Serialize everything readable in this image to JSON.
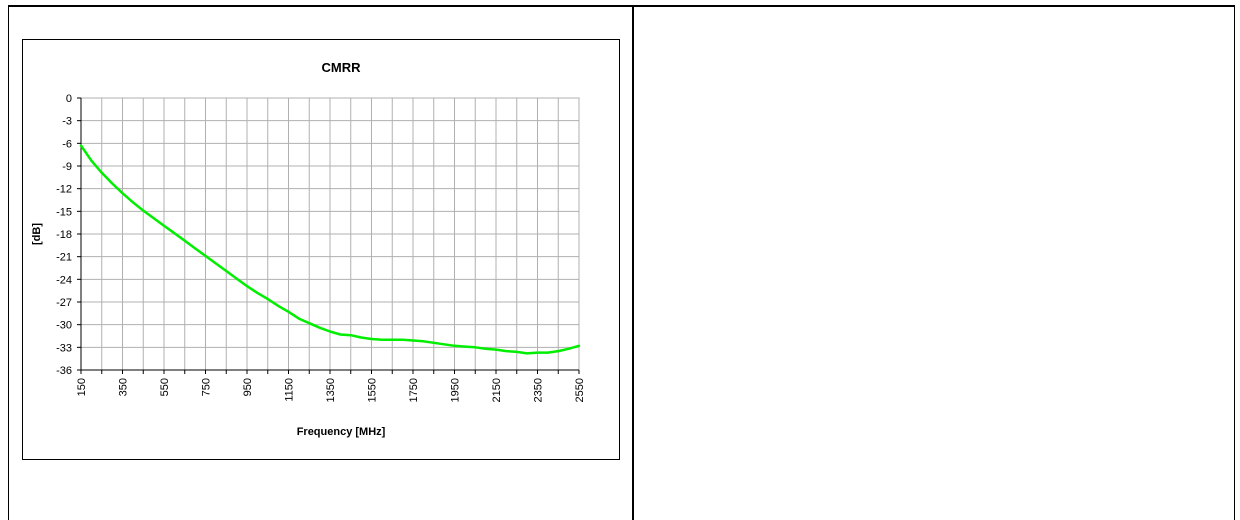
{
  "chart_data": {
    "type": "line",
    "title": "CMRR",
    "xlabel": "Frequency [MHz]",
    "ylabel": "[dB]",
    "xlim": [
      150,
      2550
    ],
    "ylim": [
      -36,
      0
    ],
    "grid": true,
    "legend": "none",
    "x_ticks": [
      150,
      250,
      350,
      450,
      550,
      650,
      750,
      850,
      950,
      1050,
      1150,
      1250,
      1350,
      1450,
      1550,
      1650,
      1750,
      1850,
      1950,
      2050,
      2150,
      2250,
      2350,
      2450,
      2550
    ],
    "x_tick_labels": [
      "150",
      "350",
      "550",
      "750",
      "950",
      "1150",
      "1350",
      "1550",
      "1750",
      "1950",
      "2150",
      "2350",
      "2550"
    ],
    "y_ticks": [
      0,
      -3,
      -6,
      -9,
      -12,
      -15,
      -18,
      -21,
      -24,
      -27,
      -30,
      -33,
      -36
    ],
    "y_tick_labels": [
      "0",
      "-3",
      "-6",
      "-9",
      "-12",
      "-15",
      "-18",
      "-21",
      "-24",
      "-27",
      "-30",
      "-33",
      "-36"
    ],
    "series": [
      {
        "color": "#00ee00",
        "x": [
          150,
          200,
          250,
          300,
          350,
          400,
          450,
          500,
          550,
          600,
          650,
          700,
          750,
          800,
          850,
          900,
          950,
          1000,
          1050,
          1100,
          1150,
          1200,
          1250,
          1300,
          1350,
          1400,
          1450,
          1500,
          1550,
          1600,
          1650,
          1700,
          1750,
          1800,
          1850,
          1900,
          1950,
          2000,
          2050,
          2100,
          2150,
          2200,
          2250,
          2300,
          2350,
          2400,
          2450,
          2500,
          2550
        ],
        "y": [
          -6.3,
          -8.3,
          -9.9,
          -11.3,
          -12.6,
          -13.8,
          -14.9,
          -15.9,
          -16.9,
          -17.9,
          -18.9,
          -19.9,
          -20.9,
          -21.9,
          -22.9,
          -23.9,
          -24.9,
          -25.8,
          -26.6,
          -27.5,
          -28.3,
          -29.2,
          -29.8,
          -30.4,
          -30.9,
          -31.3,
          -31.4,
          -31.7,
          -31.9,
          -32.0,
          -32.0,
          -32.0,
          -32.1,
          -32.2,
          -32.4,
          -32.6,
          -32.8,
          -32.9,
          -33.0,
          -33.2,
          -33.3,
          -33.5,
          -33.6,
          -33.8,
          -33.7,
          -33.7,
          -33.5,
          -33.2,
          -32.8
        ]
      }
    ]
  }
}
